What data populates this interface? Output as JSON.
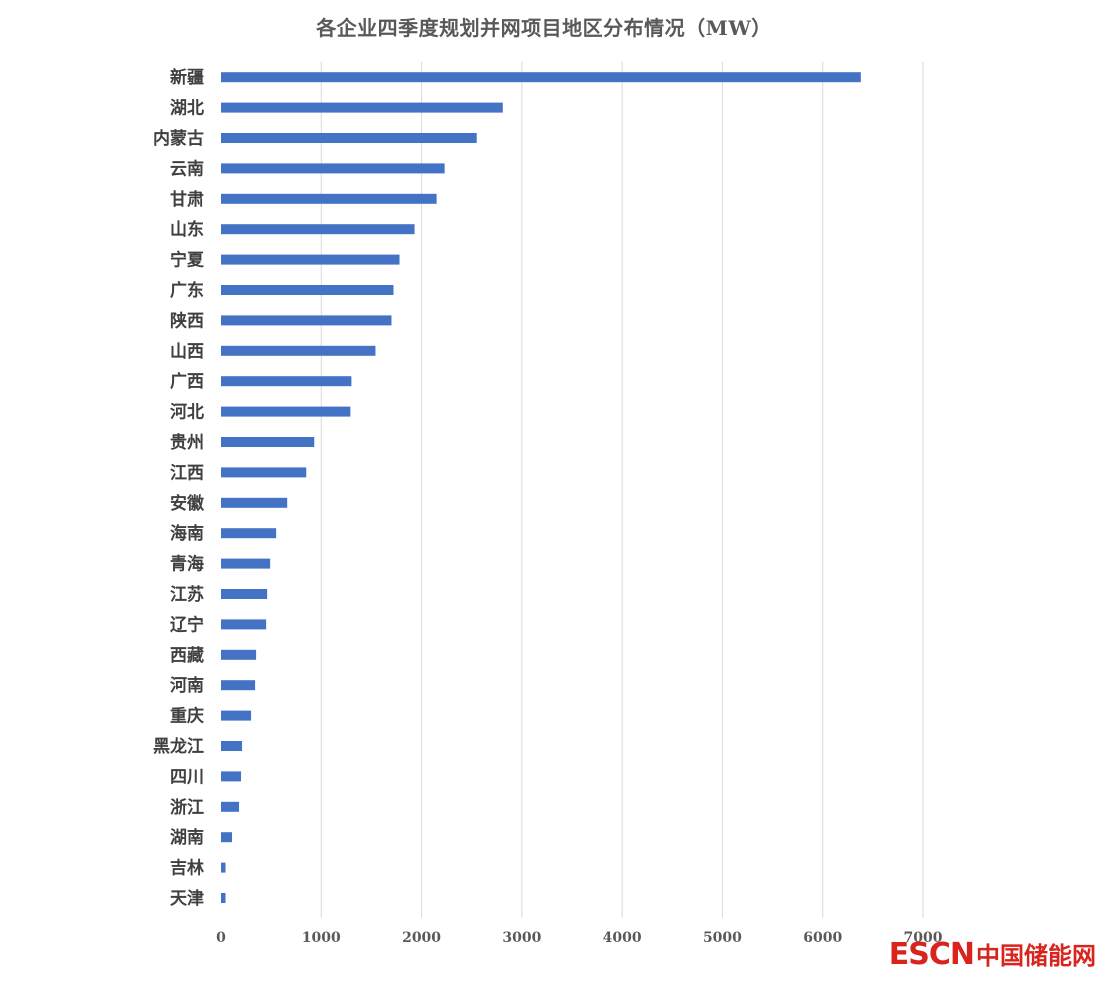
{
  "chart_data": {
    "type": "bar",
    "orientation": "horizontal",
    "title": "各企业四季度规划并网项目地区分布情况（MW）",
    "categories": [
      "新疆",
      "湖北",
      "内蒙古",
      "云南",
      "甘肃",
      "山东",
      "宁夏",
      "广东",
      "陕西",
      "山西",
      "广西",
      "河北",
      "贵州",
      "江西",
      "安徽",
      "海南",
      "青海",
      "江苏",
      "辽宁",
      "西藏",
      "河南",
      "重庆",
      "黑龙江",
      "四川",
      "浙江",
      "湖南",
      "吉林",
      "天津"
    ],
    "values": [
      6380,
      2810,
      2550,
      2230,
      2150,
      1930,
      1780,
      1720,
      1700,
      1540,
      1300,
      1290,
      930,
      850,
      660,
      550,
      490,
      460,
      450,
      350,
      340,
      300,
      210,
      200,
      180,
      110,
      45,
      45
    ],
    "xlim": [
      0,
      7000
    ],
    "ticks": [
      "0",
      "1000",
      "2000",
      "3000",
      "4000",
      "5000",
      "6000",
      "7000"
    ],
    "grid": true,
    "colors": {
      "bar": "#4472c4",
      "grid": "#d9d9d9"
    }
  },
  "watermark": {
    "latin": "ESCN",
    "cjk": "中国储能网",
    "color": "#d9231d"
  }
}
